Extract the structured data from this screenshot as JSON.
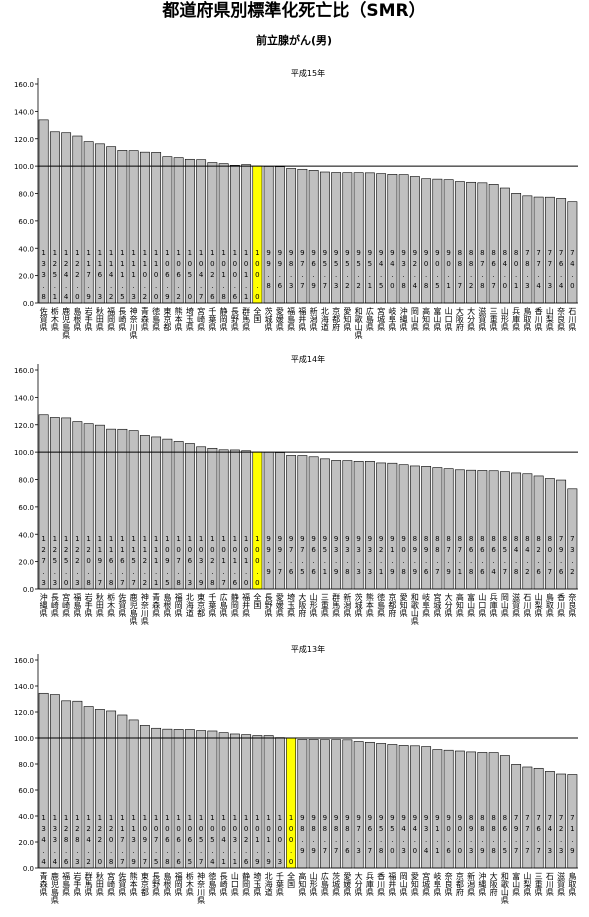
{
  "title": "都道府県別標準化死亡比（SMR）",
  "subtitle": "前立腺がん(男)",
  "chart_data": [
    {
      "type": "bar",
      "title": "平成15年",
      "color": "#c0c0c0",
      "highlight_index": 19,
      "highlight_color": "#ffff00",
      "ref_line": 100,
      "ylim": [
        0,
        160
      ],
      "yticks": [
        {
          "value": 0,
          "label": "0.0"
        },
        {
          "value": 20,
          "label": "20.0"
        },
        {
          "value": 40,
          "label": "40.0"
        },
        {
          "value": 60,
          "label": "60.0"
        },
        {
          "value": 80,
          "label": "80.0"
        },
        {
          "value": 100,
          "label": "100.0"
        },
        {
          "value": 120,
          "label": "120.0"
        },
        {
          "value": 140,
          "label": "140.0"
        },
        {
          "value": 160,
          "label": "160.0"
        }
      ],
      "categories": [
        "佐賀県",
        "栃木県",
        "鹿児島県",
        "島根県",
        "岩手県",
        "秋田県",
        "福岡県",
        "長崎県",
        "神奈川県",
        "青森県",
        "徳島県",
        "東京都",
        "熊本県",
        "埼玉県",
        "宮崎県",
        "千葉県",
        "静岡県",
        "長野県",
        "群馬県",
        "全国",
        "茨城県",
        "愛媛県",
        "福島県",
        "福井県",
        "新潟県",
        "北海道",
        "京都府",
        "愛知県",
        "和歌山県",
        "広島県",
        "宮城県",
        "岐阜県",
        "沖縄県",
        "岡山県",
        "高知県",
        "富山県",
        "山口県",
        "大阪府",
        "大分県",
        "滋賀県",
        "三重県",
        "山形県",
        "兵庫県",
        "鳥取県",
        "香川県",
        "山梨県",
        "奈良県",
        "石川県"
      ],
      "values": [
        133.8,
        125.1,
        124.4,
        122,
        117.9,
        116.3,
        114.2,
        111.5,
        111.3,
        110.2,
        110,
        106.9,
        106.2,
        105,
        104.7,
        102.6,
        101.8,
        100.6,
        101.1,
        100,
        99.8,
        99.6,
        98.3,
        97.7,
        96.9,
        95.7,
        95.3,
        95.2,
        95.2,
        95.1,
        94.5,
        94,
        93.8,
        92.4,
        90.8,
        90.5,
        90.1,
        88.7,
        88.2,
        87.8,
        86.7,
        84,
        80.1,
        78.3,
        77.4,
        77.3,
        76.4,
        74
      ],
      "value_labels": [
        "133.8",
        "125.1",
        "124.4",
        "122.0",
        "117.9",
        "116.3",
        "114.2",
        "111.5",
        "111.3",
        "110.2",
        "110.0",
        "106.9",
        "106.2",
        "105.0",
        "104.7",
        "102.6",
        "101.8",
        "100.6",
        "101.1",
        "100.0",
        "99.8",
        "99.6",
        "98.3",
        "97.7",
        "96.9",
        "95.7",
        "95.3",
        "95.2",
        "95.2",
        "95.1",
        "94.5",
        "94.0",
        "93.8",
        "92.4",
        "90.8",
        "90.5",
        "90.1",
        "88.7",
        "88.2",
        "87.8",
        "86.7",
        "84.0",
        "80.1",
        "78.3",
        "77.4",
        "77.3",
        "76.4",
        "74.0"
      ]
    },
    {
      "type": "bar",
      "title": "平成14年",
      "color": "#c0c0c0",
      "highlight_index": 19,
      "highlight_color": "#ffff00",
      "ref_line": 100,
      "ylim": [
        0,
        160
      ],
      "yticks": [
        {
          "value": 0,
          "label": "0.0"
        },
        {
          "value": 20,
          "label": "20.0"
        },
        {
          "value": 40,
          "label": "40.0"
        },
        {
          "value": 60,
          "label": "60.0"
        },
        {
          "value": 80,
          "label": "80.0"
        },
        {
          "value": 100,
          "label": "100.0"
        },
        {
          "value": 120,
          "label": "120.0"
        },
        {
          "value": 140,
          "label": "140.0"
        },
        {
          "value": 160,
          "label": "160.0"
        }
      ],
      "categories": [
        "沖縄県",
        "長崎県",
        "宮崎県",
        "福島県",
        "岩手県",
        "秋田県",
        "栃木県",
        "佐賀県",
        "鹿児島県",
        "神奈川県",
        "青森県",
        "島根県",
        "福岡県",
        "北海道",
        "東京都",
        "千葉県",
        "広島県",
        "静岡県",
        "福井県",
        "全国",
        "長野県",
        "愛媛県",
        "埼玉県",
        "大阪府",
        "山形県",
        "三重県",
        "群馬県",
        "新潟県",
        "茨城県",
        "熊本県",
        "徳島県",
        "京都府",
        "愛知県",
        "和歌山県",
        "岐阜県",
        "宮城県",
        "大分県",
        "高知県",
        "富山県",
        "山口県",
        "兵庫県",
        "岡山県",
        "滋賀県",
        "石川県",
        "山梨県",
        "鳥取県",
        "香川県",
        "奈良県"
      ],
      "values": [
        127.3,
        125.3,
        125,
        122.3,
        120.8,
        119.7,
        116.8,
        116.7,
        115.7,
        112.2,
        111.1,
        109.5,
        107.8,
        106.3,
        103.9,
        102.8,
        101.7,
        101.6,
        101,
        100,
        99.9,
        99.7,
        97.6,
        97.5,
        96.6,
        95.1,
        93.9,
        93.8,
        93.3,
        93.3,
        92.1,
        91.9,
        90.8,
        89.9,
        89.6,
        88.7,
        87.9,
        87.1,
        86.8,
        86.6,
        86.4,
        85.7,
        84.8,
        84.2,
        82.6,
        80.7,
        79.6,
        73.2
      ],
      "value_labels": [
        "127.3",
        "125.3",
        "125.0",
        "122.3",
        "120.8",
        "119.7",
        "116.8",
        "116.7",
        "115.7",
        "112.2",
        "111.1",
        "109.5",
        "107.8",
        "106.3",
        "103.9",
        "102.8",
        "101.7",
        "101.6",
        "101.0",
        "100.0",
        "99.9",
        "99.7",
        "97.6",
        "97.5",
        "96.6",
        "95.1",
        "93.9",
        "93.8",
        "93.3",
        "93.3",
        "92.1",
        "91.9",
        "90.8",
        "89.9",
        "89.6",
        "88.7",
        "87.9",
        "87.1",
        "86.8",
        "86.6",
        "86.4",
        "85.7",
        "84.8",
        "84.2",
        "82.6",
        "80.7",
        "79.6",
        "73.2"
      ]
    },
    {
      "type": "bar",
      "title": "平成13年",
      "color": "#c0c0c0",
      "highlight_index": 22,
      "highlight_color": "#ffff00",
      "ref_line": 100,
      "ylim": [
        0,
        160
      ],
      "yticks": [
        {
          "value": 0,
          "label": "0.0"
        },
        {
          "value": 20,
          "label": "20.0"
        },
        {
          "value": 40,
          "label": "40.0"
        },
        {
          "value": 60,
          "label": "60.0"
        },
        {
          "value": 80,
          "label": "80.0"
        },
        {
          "value": 100,
          "label": "100.0"
        },
        {
          "value": 120,
          "label": "120.0"
        },
        {
          "value": 140,
          "label": "140.0"
        },
        {
          "value": 160,
          "label": "160.0"
        }
      ],
      "categories": [
        "青森県",
        "鹿児島県",
        "福島県",
        "岩手県",
        "群馬県",
        "秋田県",
        "宮崎県",
        "佐賀県",
        "熊本県",
        "東京都",
        "長野県",
        "島根県",
        "福岡県",
        "栃木県",
        "神奈川県",
        "徳島県",
        "長崎県",
        "山口県",
        "静岡県",
        "埼玉県",
        "北海道",
        "千葉県",
        "全国",
        "高知県",
        "山形県",
        "広島県",
        "茨城県",
        "愛媛県",
        "大分県",
        "兵庫県",
        "香川県",
        "福井県",
        "岡山県",
        "愛知県",
        "宮城県",
        "岐阜県",
        "奈良県",
        "京都府",
        "新潟県",
        "沖縄県",
        "大阪府",
        "和歌山県",
        "富山県",
        "山梨県",
        "三重県",
        "石川県",
        "滋賀県",
        "鳥取県"
      ],
      "values": [
        134.4,
        133.4,
        128.6,
        128.3,
        124.2,
        122,
        120.8,
        117.7,
        113.9,
        109.7,
        107.5,
        106.8,
        106.6,
        106.5,
        105.7,
        105.4,
        104.1,
        103.1,
        102.6,
        101.9,
        101.9,
        100.3,
        100,
        98.9,
        98.9,
        98.7,
        98.7,
        98.6,
        97.3,
        96.7,
        95.8,
        95,
        94.3,
        94,
        93.4,
        91.1,
        90.6,
        90,
        89.3,
        88.9,
        88.8,
        86.5,
        79.7,
        77.7,
        76.7,
        74.3,
        72.3,
        71.9
      ],
      "value_labels": [
        "134.4",
        "133.4",
        "128.6",
        "128.3",
        "124.2",
        "122.0",
        "120.8",
        "117.7",
        "113.9",
        "109.7",
        "107.5",
        "106.8",
        "106.6",
        "106.5",
        "105.7",
        "105.4",
        "104.1",
        "103.1",
        "102.6",
        "101.9",
        "101.9",
        "100.3",
        "100.0",
        "98.9",
        "98.9",
        "98.7",
        "98.7",
        "98.6",
        "97.3",
        "96.7",
        "95.8",
        "95.0",
        "94.3",
        "94.0",
        "93.4",
        "91.1",
        "90.6",
        "90.0",
        "89.3",
        "88.9",
        "88.8",
        "86.5",
        "79.7",
        "77.7",
        "76.7",
        "74.3",
        "72.3",
        "71.9"
      ]
    }
  ]
}
